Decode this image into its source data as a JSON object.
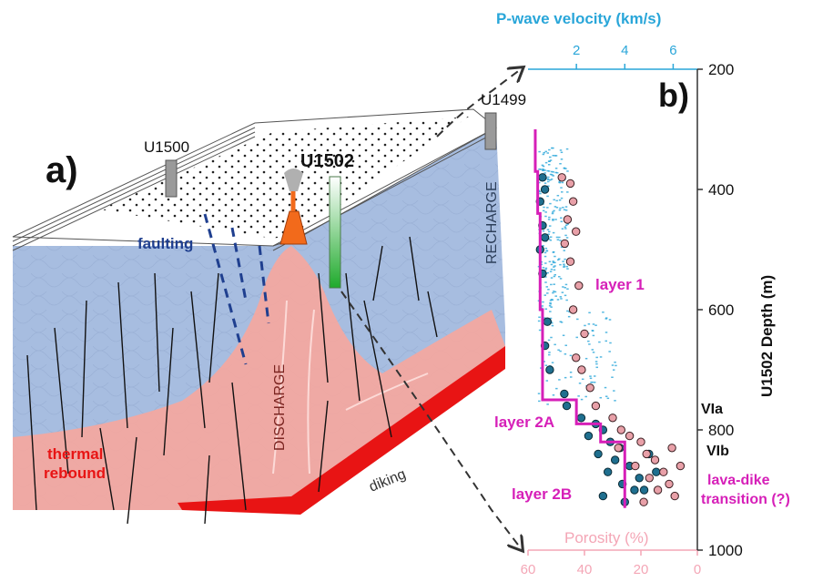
{
  "panel_a": {
    "letter": "a)",
    "sites": {
      "u1500": "U1500",
      "u1502": "U1502",
      "u1499": "U1499"
    },
    "labels": {
      "faulting": "faulting",
      "recharge": "RECHARGE",
      "discharge": "DISCHARGE",
      "thermal_line1": "thermal",
      "thermal_line2": "rebound",
      "diking": "diking"
    },
    "colors": {
      "basement": "#a7bde0",
      "hot_plume": "#f2a8a0",
      "dike_red": "#e81414",
      "cone_orange": "#f26a1b",
      "fault_blue": "#1f3f8f"
    }
  },
  "panel_b": {
    "letter": "b)",
    "top_axis_title": "P-wave velocity (km/s)",
    "bottom_axis_title": "Porosity (%)",
    "right_axis_title": "U1502 Depth (m)",
    "velocity_ticks": [
      "2",
      "4",
      "6"
    ],
    "porosity_ticks": [
      "60",
      "40",
      "20",
      "0"
    ],
    "depth_ticks": [
      "200",
      "400",
      "600",
      "800",
      "1000"
    ],
    "annotations": {
      "layer1": "layer 1",
      "layer2a": "layer 2A",
      "layer2b": "layer 2B",
      "via": "VIa",
      "vib": "VIb",
      "transition_line1": "lava-dike",
      "transition_line2": "transition (?)"
    },
    "colors": {
      "velocity_axis": "#29a6d9",
      "porosity_axis": "#f4a6b6",
      "layer_line": "#d61fb8",
      "velocity_dots": "#1f6f8f",
      "porosity_dots": "#e8a0a8"
    }
  },
  "chart_data": {
    "type": "scatter",
    "x_top_label": "P-wave velocity (km/s)",
    "x_bottom_label": "Porosity (%)",
    "ylabel": "U1502 Depth (m)",
    "velocity_lim": [
      0,
      7
    ],
    "porosity_lim": [
      60,
      0
    ],
    "ylim": [
      1000,
      200
    ],
    "layer_boundaries": [
      {
        "name": "layer 1",
        "depth": [
          300,
          750
        ]
      },
      {
        "name": "layer 2A",
        "depth": [
          750,
          820
        ]
      },
      {
        "name": "layer 2B",
        "depth": [
          820,
          930
        ]
      }
    ],
    "series": [
      {
        "name": "velocity_step",
        "points": [
          [
            0.3,
            300
          ],
          [
            0.3,
            370
          ],
          [
            0.4,
            370
          ],
          [
            0.4,
            440
          ],
          [
            0.5,
            440
          ],
          [
            0.5,
            600
          ],
          [
            0.6,
            600
          ],
          [
            0.6,
            750
          ],
          [
            2.0,
            750
          ],
          [
            2.0,
            790
          ],
          [
            3.0,
            790
          ],
          [
            3.0,
            820
          ],
          [
            4.0,
            820
          ],
          [
            4.0,
            930
          ]
        ]
      },
      {
        "name": "velocity_points",
        "points": [
          [
            0.6,
            380
          ],
          [
            0.7,
            400
          ],
          [
            0.5,
            420
          ],
          [
            0.6,
            460
          ],
          [
            0.7,
            480
          ],
          [
            0.5,
            500
          ],
          [
            0.6,
            540
          ],
          [
            0.8,
            620
          ],
          [
            0.7,
            660
          ],
          [
            0.9,
            700
          ],
          [
            1.5,
            740
          ],
          [
            1.6,
            760
          ],
          [
            2.2,
            780
          ],
          [
            2.8,
            790
          ],
          [
            3.1,
            800
          ],
          [
            2.5,
            810
          ],
          [
            3.4,
            820
          ],
          [
            3.8,
            830
          ],
          [
            2.9,
            840
          ],
          [
            3.6,
            850
          ],
          [
            4.2,
            860
          ],
          [
            3.3,
            870
          ],
          [
            4.6,
            880
          ],
          [
            3.9,
            890
          ],
          [
            4.4,
            900
          ],
          [
            3.1,
            910
          ],
          [
            4.0,
            920
          ],
          [
            5.0,
            840
          ],
          [
            5.3,
            870
          ],
          [
            4.8,
            900
          ]
        ]
      },
      {
        "name": "porosity_points",
        "points": [
          [
            48,
            380
          ],
          [
            45,
            390
          ],
          [
            44,
            420
          ],
          [
            46,
            450
          ],
          [
            43,
            470
          ],
          [
            47,
            490
          ],
          [
            45,
            520
          ],
          [
            42,
            560
          ],
          [
            44,
            600
          ],
          [
            40,
            640
          ],
          [
            43,
            680
          ],
          [
            41,
            700
          ],
          [
            38,
            730
          ],
          [
            36,
            760
          ],
          [
            30,
            780
          ],
          [
            27,
            800
          ],
          [
            24,
            810
          ],
          [
            20,
            820
          ],
          [
            28,
            830
          ],
          [
            18,
            840
          ],
          [
            15,
            850
          ],
          [
            22,
            860
          ],
          [
            12,
            870
          ],
          [
            17,
            880
          ],
          [
            10,
            890
          ],
          [
            14,
            900
          ],
          [
            8,
            910
          ],
          [
            19,
            920
          ],
          [
            6,
            860
          ],
          [
            9,
            830
          ]
        ]
      }
    ]
  }
}
